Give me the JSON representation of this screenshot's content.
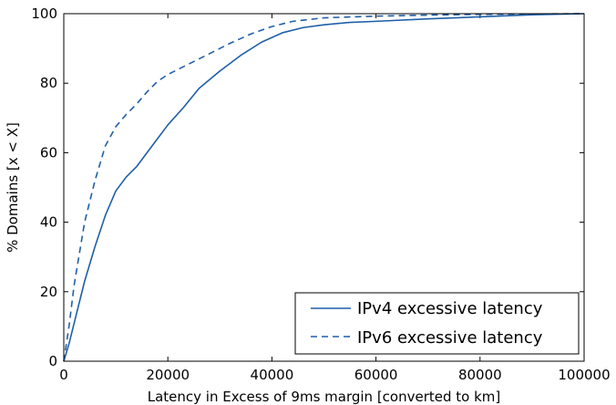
{
  "chart_data": {
    "type": "line",
    "title": "",
    "xlabel": "Latency in Excess of 9ms margin [converted to km]",
    "ylabel": "% Domains [x < X]",
    "xlim": [
      0,
      100000
    ],
    "ylim": [
      0,
      100
    ],
    "xticks": [
      0,
      20000,
      40000,
      60000,
      80000,
      100000
    ],
    "yticks": [
      0,
      20,
      40,
      60,
      80,
      100
    ],
    "grid": false,
    "legend_position": "bottom-right",
    "series": [
      {
        "name": "IPv4 excessive latency",
        "style": "solid",
        "color": "#1f5fa8",
        "x": [
          0,
          1000,
          2000,
          4000,
          6000,
          8000,
          10000,
          12000,
          14000,
          16000,
          18000,
          20000,
          23000,
          26000,
          30000,
          34000,
          38000,
          42000,
          46000,
          50000,
          55000,
          60000,
          70000,
          80000,
          90000,
          100000
        ],
        "y": [
          0,
          5,
          11,
          23,
          33,
          42,
          49,
          53,
          56,
          60,
          64,
          68,
          73,
          78.5,
          83.5,
          88,
          91.8,
          94.5,
          96,
          96.8,
          97.5,
          97.8,
          98.5,
          99.1,
          99.7,
          100
        ]
      },
      {
        "name": "IPv6 excessive latency",
        "style": "dashed",
        "color": "#1f5fa8",
        "x": [
          0,
          1000,
          2000,
          4000,
          6000,
          8000,
          10000,
          12000,
          14000,
          16000,
          18000,
          20000,
          24000,
          28000,
          32000,
          36000,
          40000,
          44000,
          50000,
          60000,
          70000,
          80000,
          90000,
          100000
        ],
        "y": [
          0,
          10,
          22,
          40,
          52,
          62,
          67.5,
          71,
          74,
          77.5,
          80.5,
          82.5,
          85.5,
          88.5,
          91.5,
          94.2,
          96.3,
          97.8,
          98.8,
          99.3,
          99.6,
          99.8,
          99.9,
          100
        ]
      }
    ]
  }
}
